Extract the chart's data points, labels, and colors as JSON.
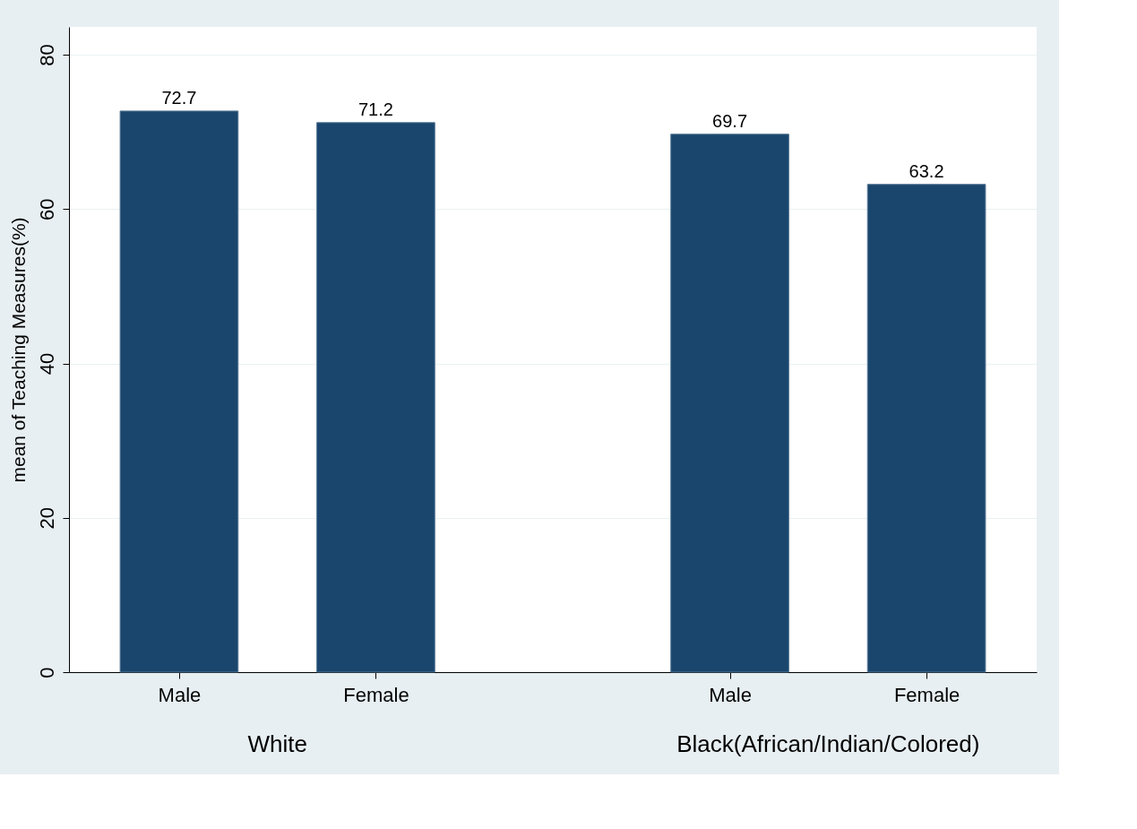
{
  "chart_data": {
    "type": "bar",
    "categories": [
      "Male",
      "Female",
      "Male",
      "Female"
    ],
    "values": [
      72.7,
      71.2,
      69.7,
      63.2
    ],
    "color": "#1a466e",
    "ylabel": "mean of Teaching Measures(%)",
    "ylim": [
      0,
      83.6
    ],
    "yticks": [
      0,
      20,
      40,
      60,
      80
    ],
    "grid": "y",
    "data_labels": true,
    "annotations": [
      "White",
      "Black(African/Indian/Colored)"
    ]
  }
}
